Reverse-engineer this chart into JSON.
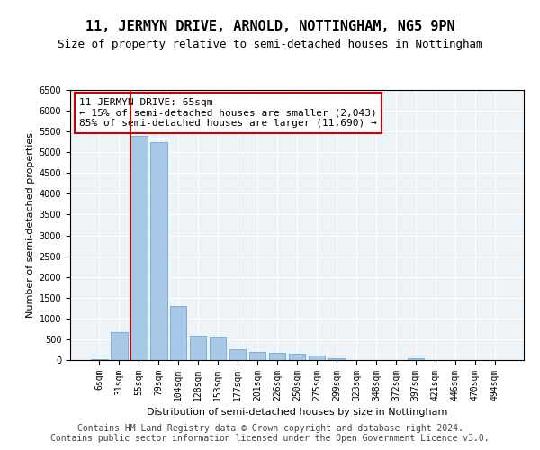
{
  "title": "11, JERMYN DRIVE, ARNOLD, NOTTINGHAM, NG5 9PN",
  "subtitle": "Size of property relative to semi-detached houses in Nottingham",
  "xlabel": "Distribution of semi-detached houses by size in Nottingham",
  "ylabel": "Number of semi-detached properties",
  "categories": [
    "6sqm",
    "31sqm",
    "55sqm",
    "79sqm",
    "104sqm",
    "128sqm",
    "153sqm",
    "177sqm",
    "201sqm",
    "226sqm",
    "250sqm",
    "275sqm",
    "299sqm",
    "323sqm",
    "348sqm",
    "372sqm",
    "397sqm",
    "421sqm",
    "446sqm",
    "470sqm",
    "494sqm"
  ],
  "values": [
    30,
    680,
    5400,
    5250,
    1300,
    590,
    570,
    250,
    200,
    170,
    160,
    110,
    50,
    0,
    0,
    0,
    40,
    0,
    0,
    0,
    0
  ],
  "bar_color": "#a8c8e8",
  "bar_edge_color": "#5a9fd4",
  "property_bin_index": 2,
  "property_line_color": "#cc0000",
  "annotation_text": "11 JERMYN DRIVE: 65sqm\n← 15% of semi-detached houses are smaller (2,043)\n85% of semi-detached houses are larger (11,690) →",
  "annotation_box_facecolor": "#ffffff",
  "annotation_box_edgecolor": "#cc0000",
  "bg_color": "#eef3f8",
  "grid_color": "#ffffff",
  "ylim_max": 6500,
  "yticks": [
    0,
    500,
    1000,
    1500,
    2000,
    2500,
    3000,
    3500,
    4000,
    4500,
    5000,
    5500,
    6000,
    6500
  ],
  "footer1": "Contains HM Land Registry data © Crown copyright and database right 2024.",
  "footer2": "Contains public sector information licensed under the Open Government Licence v3.0.",
  "title_fontsize": 11,
  "subtitle_fontsize": 9,
  "xlabel_fontsize": 8,
  "ylabel_fontsize": 8,
  "tick_fontsize": 7,
  "annot_fontsize": 8,
  "footer_fontsize": 7
}
